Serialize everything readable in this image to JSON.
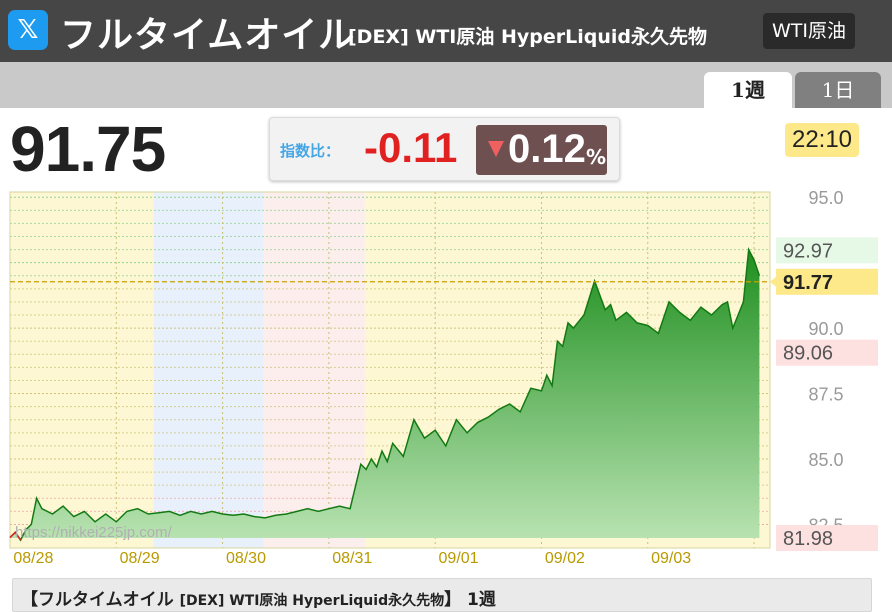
{
  "header": {
    "title": "フルタイムオイル",
    "subtitle": "[DEX] WTI原油 HyperLiquid永久先物",
    "badge": "WTI原油",
    "logo_icon": "x-logo-icon"
  },
  "tabs": [
    {
      "label": "1週",
      "active": true
    },
    {
      "label": "1日",
      "active": false
    }
  ],
  "quote": {
    "price": "91.75",
    "index_label": "指数比：",
    "change": "-0.11",
    "change_pct": "0.12",
    "pct_unit": "%",
    "time": "22:10"
  },
  "colors": {
    "up": "#2a9a2a",
    "down": "#e12020",
    "accent_time": "#fde98a"
  },
  "chart_data": {
    "type": "area",
    "watermark": "https://nikkei225jp.com/",
    "x_tick_labels": [
      "08/28",
      "08/29",
      "08/30",
      "08/31",
      "09/01",
      "09/02",
      "09/03"
    ],
    "y_tick_labels": [
      "95.0",
      "90.0",
      "87.5",
      "85.0",
      "82.5"
    ],
    "ylim": [
      81.6,
      95.2
    ],
    "reference_labels": {
      "high": "92.97",
      "current": "91.77",
      "low": "81.98",
      "upper": "89.06"
    },
    "x_range": [
      0,
      7.15
    ],
    "series": [
      {
        "x": [
          0.0,
          0.05,
          0.1,
          0.15,
          0.2,
          0.25,
          0.3,
          0.4,
          0.5,
          0.6,
          0.7,
          0.8,
          0.9,
          1.0,
          1.1,
          1.2,
          1.3,
          1.4,
          1.5,
          1.6,
          1.7,
          1.8,
          1.9,
          2.0,
          2.1,
          2.2,
          2.3,
          2.4,
          2.5,
          2.6,
          2.7,
          2.8,
          2.9,
          3.0,
          3.1,
          3.2,
          3.3,
          3.35,
          3.4,
          3.45,
          3.5,
          3.55,
          3.6,
          3.7,
          3.8,
          3.9,
          4.0,
          4.1,
          4.2,
          4.3,
          4.4,
          4.5,
          4.6,
          4.7,
          4.8,
          4.9,
          5.0,
          5.05,
          5.1,
          5.15,
          5.2,
          5.25,
          5.3,
          5.4,
          5.5,
          5.6,
          5.65,
          5.7,
          5.8,
          5.9,
          6.0,
          6.1,
          6.2,
          6.3,
          6.4,
          6.5,
          6.6,
          6.7,
          6.75,
          6.8,
          6.85,
          6.9,
          6.95,
          7.0,
          7.05
        ],
        "values": [
          82.0,
          82.2,
          81.9,
          82.3,
          82.5,
          83.5,
          83.1,
          82.9,
          83.2,
          82.8,
          83.0,
          82.6,
          82.9,
          82.6,
          83.0,
          83.1,
          82.9,
          82.95,
          83.0,
          82.85,
          83.0,
          82.9,
          83.0,
          82.9,
          82.85,
          82.9,
          82.8,
          82.75,
          82.85,
          82.9,
          83.0,
          83.1,
          83.0,
          83.1,
          83.2,
          83.1,
          84.8,
          84.6,
          85.0,
          84.7,
          85.3,
          84.9,
          85.6,
          85.1,
          86.5,
          85.8,
          86.1,
          85.5,
          86.5,
          86.0,
          86.4,
          86.6,
          86.9,
          87.1,
          86.8,
          87.7,
          87.6,
          88.2,
          87.8,
          89.5,
          89.3,
          90.2,
          90.0,
          90.5,
          91.8,
          90.7,
          90.9,
          90.3,
          90.6,
          90.2,
          90.1,
          89.8,
          91.0,
          90.6,
          90.3,
          90.8,
          90.5,
          90.9,
          91.0,
          90.0,
          90.5,
          91.0,
          93.0,
          92.6,
          92.0
        ]
      }
    ],
    "grid": true,
    "sessions": [
      {
        "from": 0.0,
        "to": 1.35,
        "color": "#fdf7d4"
      },
      {
        "from": 1.35,
        "to": 2.38,
        "color": "#e8f0fb"
      },
      {
        "from": 2.38,
        "to": 3.34,
        "color": "#fdeeee"
      },
      {
        "from": 3.34,
        "to": 7.15,
        "color": "#fdf7d4"
      }
    ],
    "current_value": 91.77,
    "high_value": 92.97,
    "upper_value": 89.06,
    "low_value": 81.98
  },
  "footer": {
    "prefix": "【フルタイムオイル ",
    "small": "[DEX] WTI原油 HyperLiquid永久先物",
    "suffix": "】 1週"
  }
}
